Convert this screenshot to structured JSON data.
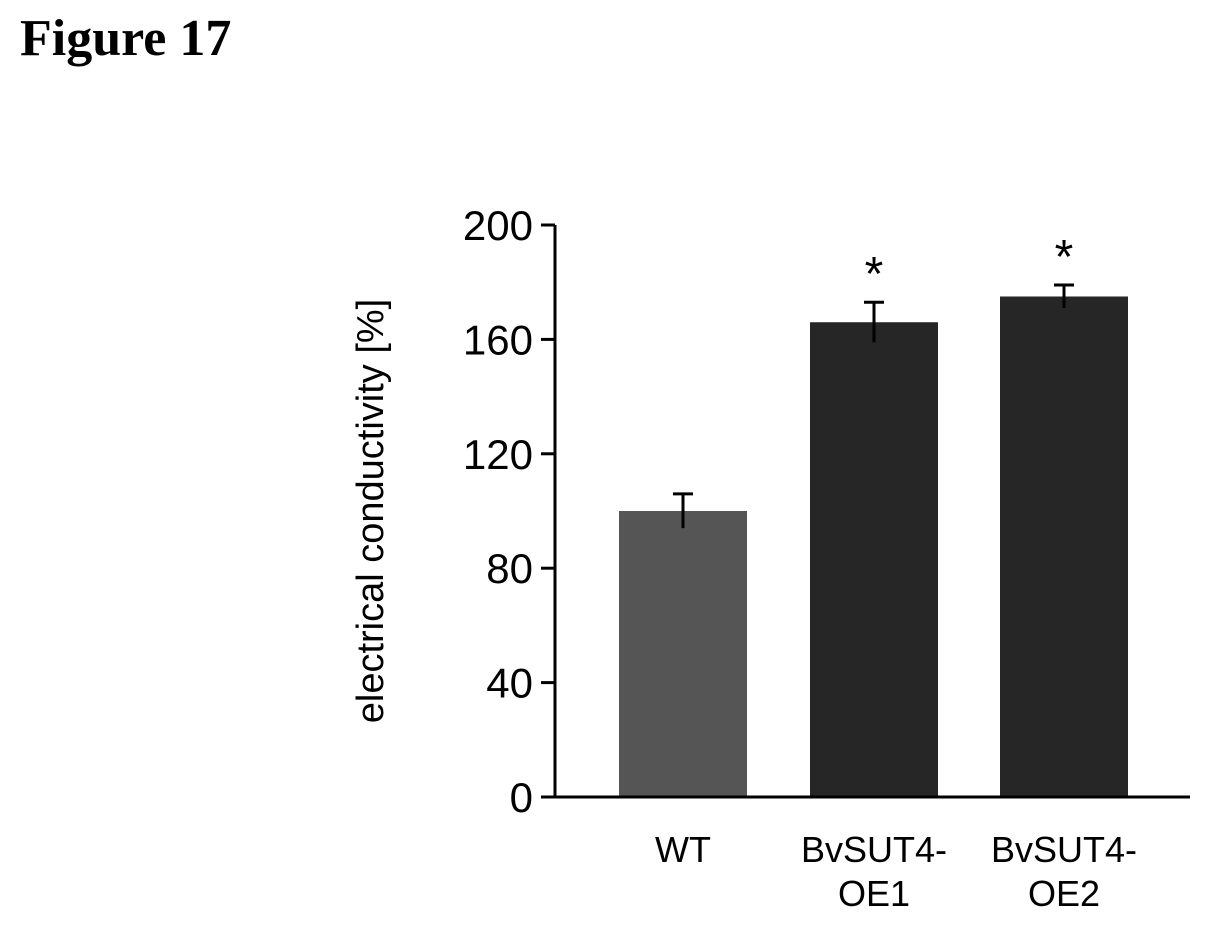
{
  "figure_label": "Figure 17",
  "chart_data": {
    "type": "bar",
    "title": "",
    "ylabel": "electrical conductivity [%]",
    "xlabel": "",
    "categories": [
      [
        "WT"
      ],
      [
        "BvSUT4-",
        "OE1"
      ],
      [
        "BvSUT4-",
        "OE2"
      ]
    ],
    "values": [
      100,
      166,
      175
    ],
    "errors": [
      6,
      7,
      4
    ],
    "annotations": [
      "",
      "*",
      "*"
    ],
    "ylim": [
      0,
      200
    ],
    "yticks": [
      0,
      40,
      80,
      120,
      160,
      200
    ],
    "grid": false,
    "colors": {
      "bar_wt": "#555555",
      "bar_oe": "#262626",
      "axis": "#000000"
    }
  }
}
